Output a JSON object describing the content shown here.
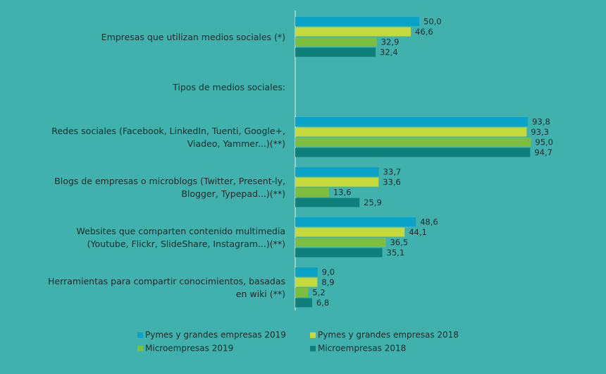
{
  "chart_data": {
    "type": "bar",
    "orientation": "horizontal",
    "categories": [
      "Empresas que utilizan medios sociales (*)",
      "Tipos de medios sociales:",
      "Redes sociales (Facebook, LinkedIn, Tuenti, Google+,\nViadeo, Yammer...)(**)",
      "Blogs de empresas o microblogs (Twitter, Present-ly,\nBlogger, Typepad...)(**)",
      "Websites que comparten contenido multimedia\n(Youtube, Flickr,  SlideShare, Instagram...)(**)",
      "Herramientas para compartir conocimientos, basadas\nen wiki (**)"
    ],
    "series": [
      {
        "name": "Pymes y grandes empresas 2019",
        "color": "#0aa3c8",
        "values": [
          50.0,
          null,
          93.8,
          33.7,
          48.6,
          9.0
        ],
        "value_labels": [
          "50,0",
          null,
          "93,8",
          "33,7",
          "48,6",
          "9,0"
        ]
      },
      {
        "name": "Pymes y grandes empresas 2018",
        "color": "#c6d93a",
        "values": [
          46.6,
          null,
          93.3,
          33.6,
          44.1,
          8.9
        ],
        "value_labels": [
          "46,6",
          null,
          "93,3",
          "33,6",
          "44,1",
          "8,9"
        ]
      },
      {
        "name": "Microempresas 2019",
        "color": "#7dbe3f",
        "values": [
          32.9,
          null,
          95.0,
          13.6,
          36.5,
          5.2
        ],
        "value_labels": [
          "32,9",
          null,
          "95,0",
          "13,6",
          "36,5",
          "5,2"
        ]
      },
      {
        "name": "Microempresas 2018",
        "color": "#0e7f7a",
        "values": [
          32.4,
          null,
          94.7,
          25.9,
          35.1,
          6.8
        ],
        "value_labels": [
          "32,4",
          null,
          "94,7",
          "25,9",
          "35,1",
          "6,8"
        ]
      }
    ],
    "xlim": [
      0,
      100
    ],
    "grid": false,
    "legend": "bottom"
  }
}
